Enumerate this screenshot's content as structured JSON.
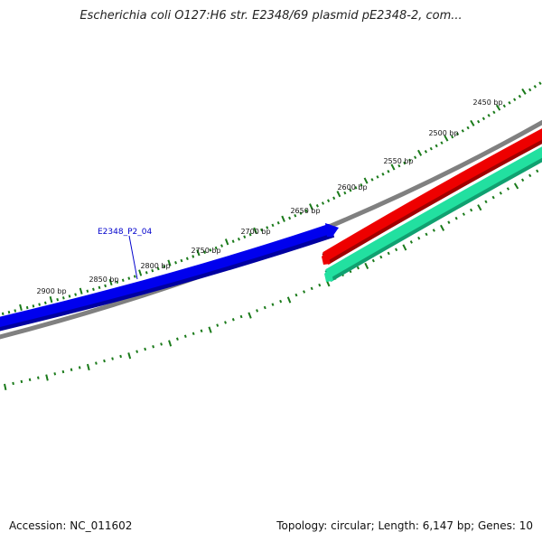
{
  "title": "Escherichia coli O127:H6 str. E2348/69 plasmid pE2348-2, com...",
  "accession_line": "Accession: NC_011602",
  "summary_line": "Topology: circular; Length: 6,147 bp; Genes: 10",
  "map": {
    "ruler_color": "#1a7a1a",
    "backbone_color": "#808080",
    "tick_labels": [
      "2450 bp",
      "2500 bp",
      "2550 bp",
      "2600 bp",
      "2650 bp",
      "2700 bp",
      "2750 bp",
      "2800 bp",
      "2850 bp",
      "2900 bp"
    ],
    "feature_label": "E2348_P2_04",
    "feature_label_color": "#0000cc",
    "features": [
      {
        "name": "E2348_P2_04",
        "color": "#0000ee",
        "strand": "forward"
      },
      {
        "name": "red-feature",
        "color": "#ee0000",
        "strand": "reverse"
      },
      {
        "name": "teal-feature",
        "color": "#22e0a0",
        "strand": "reverse"
      }
    ]
  }
}
